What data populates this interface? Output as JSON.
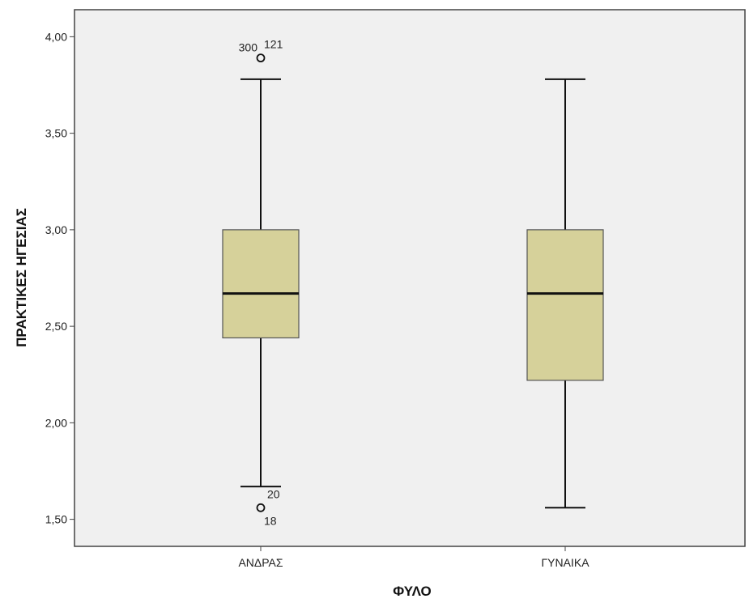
{
  "chart_data": {
    "type": "boxplot",
    "xlabel": "ΦΥΛΟ",
    "ylabel": "ΠΡΑΚΤΙΚΕΣ ΗΓΕΣΙΑΣ",
    "ylim": [
      1.36,
      4.14
    ],
    "yticks": [
      1.5,
      2.0,
      2.5,
      3.0,
      3.5,
      4.0
    ],
    "ytick_labels": [
      "1,50",
      "2,00",
      "2,50",
      "3,00",
      "3,50",
      "4,00"
    ],
    "grid": false,
    "colors": {
      "box_fill": "#d6d19a",
      "plot_bg": "#f0f0f0",
      "line": "#111111"
    },
    "categories": [
      "ΑΝΔΡΑΣ",
      "ΓΥΝΑΙΚΑ"
    ],
    "boxes": [
      {
        "category": "ΑΝΔΡΑΣ",
        "whisker_low": 1.67,
        "q1": 2.44,
        "median": 2.67,
        "q3": 3.0,
        "whisker_high": 3.78,
        "outliers": [
          {
            "value": 3.89,
            "labels": [
              "300",
              "121"
            ]
          },
          {
            "value": 1.56,
            "labels": [
              "20",
              "18"
            ]
          }
        ]
      },
      {
        "category": "ΓΥΝΑΙΚΑ",
        "whisker_low": 1.56,
        "q1": 2.22,
        "median": 2.67,
        "q3": 3.0,
        "whisker_high": 3.78,
        "outliers": []
      }
    ]
  }
}
